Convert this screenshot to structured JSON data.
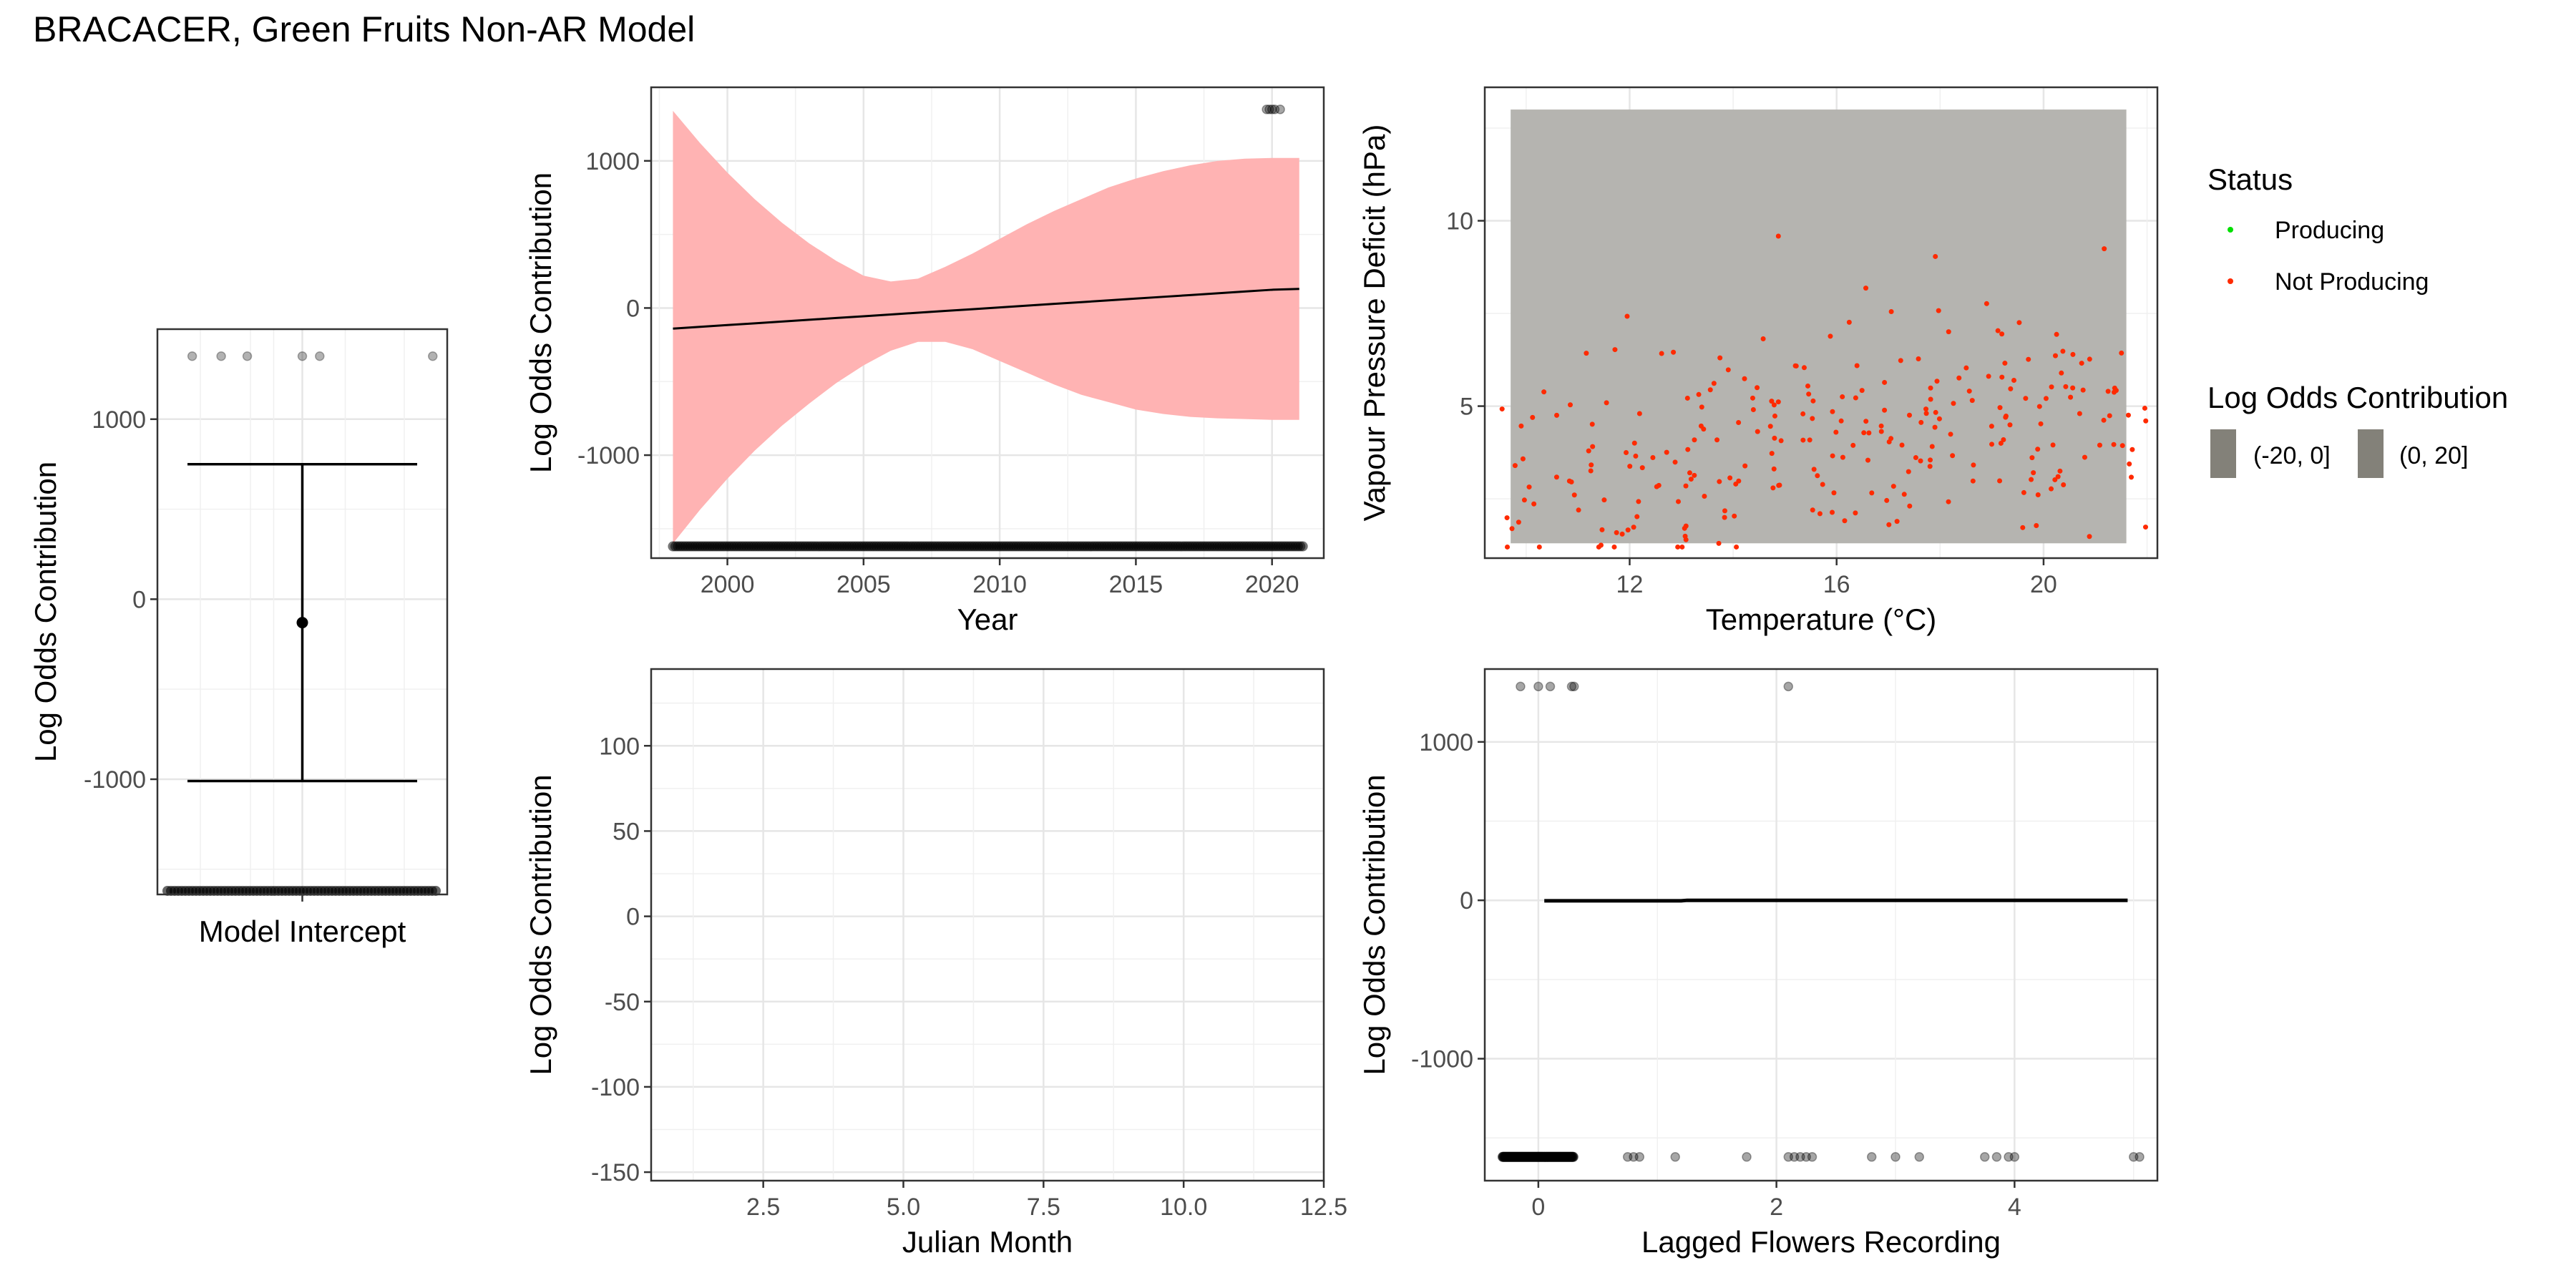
{
  "figure": {
    "title": "BRACACER, Green Fruits Non-AR Model"
  },
  "legend": {
    "status_title": "Status",
    "status_items": [
      {
        "label": "Producing",
        "color": "#00e000"
      },
      {
        "label": "Not Producing",
        "color": "#ff2a00"
      }
    ],
    "fill_title": "Log Odds Contribution",
    "fill_items": [
      {
        "label": "(-20, 0]",
        "color": "#838179"
      },
      {
        "label": "(0, 20]",
        "color": "#838179"
      }
    ]
  },
  "chart_data": [
    {
      "id": "intercept",
      "type": "scatter",
      "xlabel": "Model Intercept",
      "ylabel": "Log Odds Contribution",
      "ylim": [
        -1640,
        1500
      ],
      "yticks": [
        -1000,
        0,
        1000
      ],
      "grid": true,
      "estimate": -130,
      "ci": [
        -1010,
        750
      ],
      "obs_top_y": 1350,
      "obs_top_x": [
        0.12,
        0.22,
        0.31,
        0.5,
        0.56,
        0.95
      ],
      "obs_bottom_y": -1620
    },
    {
      "id": "year",
      "type": "line",
      "xlabel": "Year",
      "ylabel": "Log Odds Contribution",
      "xlim": [
        1997.2,
        2021.9
      ],
      "ylim": [
        -1700,
        1500
      ],
      "xticks": [
        2000,
        2005,
        2010,
        2015,
        2020
      ],
      "yticks": [
        -1000,
        0,
        1000
      ],
      "grid": true,
      "band_color": "#ffb3b3",
      "x": [
        1998,
        1999,
        2000,
        2001,
        2002,
        2003,
        2004,
        2005,
        2006,
        2007,
        2008,
        2009,
        2010,
        2011,
        2012,
        2013,
        2014,
        2015,
        2016,
        2017,
        2018,
        2019,
        2020,
        2021
      ],
      "fit": [
        -140,
        -128,
        -116,
        -104,
        -92,
        -80,
        -68,
        -56,
        -44,
        -32,
        -20,
        -8,
        4,
        16,
        28,
        40,
        52,
        64,
        76,
        88,
        100,
        112,
        124,
        130
      ],
      "upper": [
        1340,
        1120,
        920,
        740,
        580,
        440,
        320,
        220,
        180,
        200,
        280,
        370,
        470,
        570,
        660,
        740,
        820,
        880,
        930,
        970,
        1000,
        1015,
        1020,
        1020
      ],
      "lower": [
        -1600,
        -1370,
        -1160,
        -970,
        -800,
        -650,
        -510,
        -390,
        -290,
        -230,
        -230,
        -280,
        -360,
        -440,
        -520,
        -590,
        -640,
        -690,
        -720,
        -740,
        -750,
        -755,
        -760,
        -760
      ],
      "obs_bottom_y": -1620,
      "obs_top_y": 1350,
      "obs_top_x": [
        2019.8,
        2019.9,
        2020.0,
        2020.1,
        2020.3
      ]
    },
    {
      "id": "vpd_temp",
      "type": "scatter",
      "xlabel": "Temperature (°C)",
      "ylabel": "Vapour Pressure Deficit (hPa)",
      "xlim": [
        9.2,
        22.2
      ],
      "ylim": [
        0.9,
        13.6
      ],
      "xticks": [
        12,
        16,
        20
      ],
      "yticks": [
        5,
        10
      ],
      "grid": true,
      "tile_color": "#b5b4b0",
      "tile_x": [
        9.7,
        21.6
      ],
      "tile_y": [
        1.3,
        13.0
      ],
      "points_status": "Not Producing",
      "point_count": 260,
      "point_x_range": [
        9.5,
        22.0
      ],
      "point_y_range": [
        1.2,
        13.0
      ]
    },
    {
      "id": "julian",
      "type": "line",
      "xlabel": "Julian Month",
      "ylabel": "Log Odds Contribution",
      "xlim": [
        0.5,
        12.5
      ],
      "ylim": [
        -155,
        145
      ],
      "xticks": [
        "2.5",
        "5.0",
        "7.5",
        "10.0",
        "12.5"
      ],
      "xtick_values": [
        2.5,
        5.0,
        7.5,
        10.0,
        12.5
      ],
      "yticks": [
        -150,
        -100,
        -50,
        0,
        50,
        100
      ],
      "grid": true
    },
    {
      "id": "lagged",
      "type": "line",
      "xlabel": "Lagged Flowers Recording",
      "ylabel": "Log Odds Contribution",
      "xlim": [
        -0.45,
        5.2
      ],
      "ylim": [
        -1770,
        1460
      ],
      "xticks": [
        0,
        2,
        4
      ],
      "yticks": [
        -1000,
        0,
        1000
      ],
      "grid": true,
      "fit_x": [
        0.05,
        1.2,
        1.25,
        4.95
      ],
      "fit_y": [
        -3,
        -3,
        0,
        0
      ],
      "obs_top_y": 1350,
      "obs_top_x": [
        -0.15,
        0.0,
        0.1,
        0.28,
        0.3,
        2.1
      ],
      "obs_bottom_y": -1620,
      "obs_bottom_x": [
        0.75,
        0.8,
        0.85,
        1.15,
        1.75,
        2.1,
        2.15,
        2.2,
        2.25,
        2.3,
        2.8,
        3.0,
        3.2,
        3.75,
        3.85,
        3.95,
        4.0,
        5.0,
        5.05
      ]
    }
  ]
}
